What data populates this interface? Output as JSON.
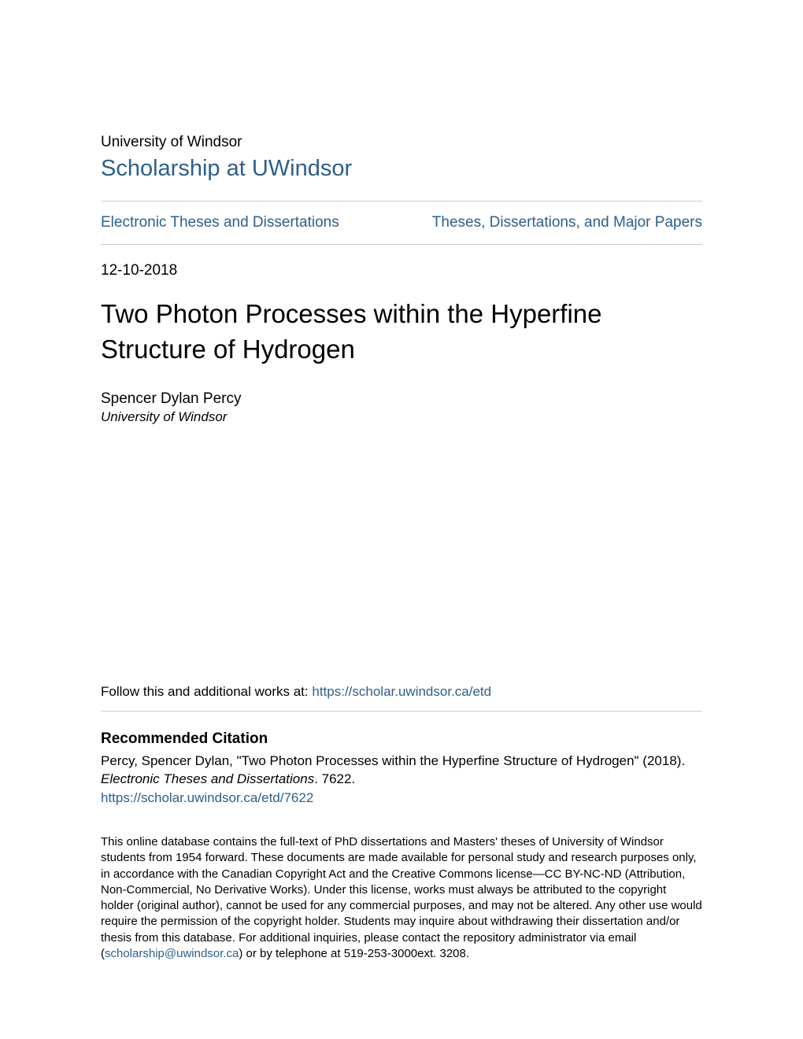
{
  "colors": {
    "link": "#2c5f8d",
    "text": "#000000",
    "rule": "#cccccc",
    "background": "#ffffff"
  },
  "typography": {
    "body_family": "Helvetica Neue, Helvetica, Arial, sans-serif",
    "institution_fontsize": 19,
    "repository_fontsize": 29,
    "nav_fontsize": 19,
    "date_fontsize": 19,
    "title_fontsize": 33,
    "author_fontsize": 19,
    "affiliation_fontsize": 17,
    "follow_fontsize": 17,
    "citation_heading_fontsize": 19,
    "citation_text_fontsize": 17,
    "disclaimer_fontsize": 15
  },
  "header": {
    "institution": "University of Windsor",
    "repository": "Scholarship at UWindsor"
  },
  "nav": {
    "left": "Electronic Theses and Dissertations",
    "right": "Theses, Dissertations, and Major Papers"
  },
  "meta": {
    "date": "12-10-2018"
  },
  "title": "Two Photon Processes within the Hyperfine Structure of Hydrogen",
  "author": {
    "name": "Spencer Dylan Percy",
    "affiliation": "University of Windsor"
  },
  "follow": {
    "prefix": "Follow this and additional works at: ",
    "url": "https://scholar.uwindsor.ca/etd"
  },
  "citation": {
    "heading": "Recommended Citation",
    "text_line1": "Percy, Spencer Dylan, \"Two Photon Processes within the Hyperfine Structure of Hydrogen\" (2018).",
    "series_italic": "Electronic Theses and Dissertations",
    "series_suffix": ". 7622.",
    "link": "https://scholar.uwindsor.ca/etd/7622"
  },
  "disclaimer": {
    "part1": "This online database contains the full-text of PhD dissertations and Masters' theses of University of Windsor students from 1954 forward. These documents are made available for personal study and research purposes only, in accordance with the Canadian Copyright Act and the Creative Commons license—CC BY-NC-ND (Attribution, Non-Commercial, No Derivative Works). Under this license, works must always be attributed to the copyright holder (original author), cannot be used for any commercial purposes, and may not be altered. Any other use would require the permission of the copyright holder. Students may inquire about withdrawing their dissertation and/or thesis from this database. For additional inquiries, please contact the repository administrator via email (",
    "email": "scholarship@uwindsor.ca",
    "part2": ") or by telephone at 519-253-3000ext. 3208."
  }
}
